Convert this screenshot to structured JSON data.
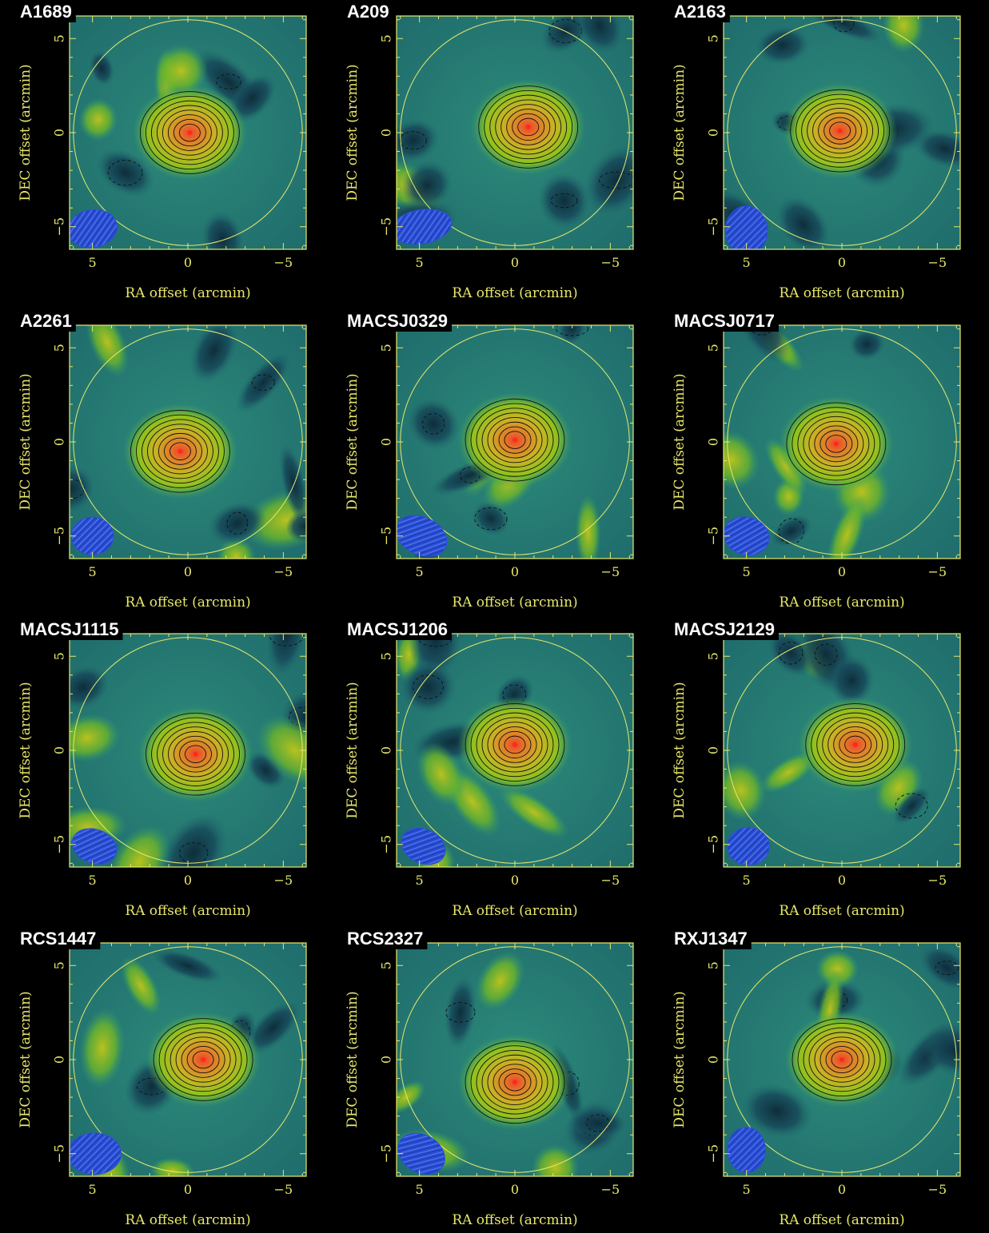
{
  "colors": {
    "background": "#000000",
    "axes": "#e8e86a",
    "title_box": "#000000",
    "title_text": "#ffffff",
    "beam": "#2a4fd6"
  },
  "chart_data": [
    {
      "type": "heatmap",
      "title": "A1689",
      "xlabel": "RA offset (arcmin)",
      "ylabel": "DEC offset (arcmin)",
      "xlim": [
        6.2,
        -6.2
      ],
      "ylim": [
        -6.2,
        6.2
      ],
      "xticks": [
        "5",
        "0",
        "−5"
      ],
      "yticks": [
        "−5",
        "0",
        "5"
      ],
      "field_radius": 6.0,
      "beam": {
        "x": 5.0,
        "y": -5.1,
        "rx": 1.3,
        "ry": 1.0,
        "angle": -10
      },
      "cluster_peak": {
        "x": -0.1,
        "y": 0.0
      }
    },
    {
      "type": "heatmap",
      "title": "A209",
      "xlabel": "RA offset (arcmin)",
      "ylabel": "DEC offset (arcmin)",
      "xlim": [
        6.2,
        -6.2
      ],
      "ylim": [
        -6.2,
        6.2
      ],
      "xticks": [
        "5",
        "0",
        "−5"
      ],
      "yticks": [
        "−5",
        "0",
        "5"
      ],
      "field_radius": 6.0,
      "beam": {
        "x": 4.9,
        "y": -5.0,
        "rx": 1.6,
        "ry": 0.9,
        "angle": -10
      },
      "cluster_peak": {
        "x": -0.7,
        "y": 0.3
      }
    },
    {
      "type": "heatmap",
      "title": "A2163",
      "xlabel": "RA offset (arcmin)",
      "ylabel": "DEC offset (arcmin)",
      "xlim": [
        6.2,
        -6.2
      ],
      "ylim": [
        -6.2,
        6.2
      ],
      "xticks": [
        "5",
        "0",
        "−5"
      ],
      "yticks": [
        "−5",
        "0",
        "5"
      ],
      "field_radius": 6.0,
      "beam": {
        "x": 5.0,
        "y": -5.2,
        "rx": 1.1,
        "ry": 1.3,
        "angle": 0
      },
      "cluster_peak": {
        "x": 0.1,
        "y": 0.1
      }
    },
    {
      "type": "heatmap",
      "title": "A2261",
      "xlabel": "RA offset (arcmin)",
      "ylabel": "DEC offset (arcmin)",
      "xlim": [
        6.2,
        -6.2
      ],
      "ylim": [
        -6.2,
        6.2
      ],
      "xticks": [
        "5",
        "0",
        "−5"
      ],
      "yticks": [
        "−5",
        "0",
        "5"
      ],
      "field_radius": 6.0,
      "beam": {
        "x": 5.0,
        "y": -5.0,
        "rx": 1.1,
        "ry": 1.0,
        "angle": 0
      },
      "cluster_peak": {
        "x": 0.4,
        "y": -0.5
      }
    },
    {
      "type": "heatmap",
      "title": "MACSJ0329",
      "xlabel": "RA offset (arcmin)",
      "ylabel": "DEC offset (arcmin)",
      "xlim": [
        6.2,
        -6.2
      ],
      "ylim": [
        -6.2,
        6.2
      ],
      "xticks": [
        "5",
        "0",
        "−5"
      ],
      "yticks": [
        "−5",
        "0",
        "5"
      ],
      "field_radius": 6.0,
      "beam": {
        "x": 4.9,
        "y": -5.0,
        "rx": 1.4,
        "ry": 1.0,
        "angle": 25
      },
      "cluster_peak": {
        "x": 0.0,
        "y": 0.1
      }
    },
    {
      "type": "heatmap",
      "title": "MACSJ0717",
      "xlabel": "RA offset (arcmin)",
      "ylabel": "DEC offset (arcmin)",
      "xlim": [
        6.2,
        -6.2
      ],
      "ylim": [
        -6.2,
        6.2
      ],
      "xticks": [
        "5",
        "0",
        "−5"
      ],
      "yticks": [
        "−5",
        "0",
        "5"
      ],
      "field_radius": 6.0,
      "beam": {
        "x": 5.0,
        "y": -5.0,
        "rx": 1.2,
        "ry": 1.0,
        "angle": 15
      },
      "cluster_peak": {
        "x": 0.3,
        "y": -0.1
      }
    },
    {
      "type": "heatmap",
      "title": "MACSJ1115",
      "xlabel": "RA offset (arcmin)",
      "ylabel": "DEC offset (arcmin)",
      "xlim": [
        6.2,
        -6.2
      ],
      "ylim": [
        -6.2,
        6.2
      ],
      "xticks": [
        "5",
        "0",
        "−5"
      ],
      "yticks": [
        "−5",
        "0",
        "5"
      ],
      "field_radius": 6.0,
      "beam": {
        "x": 4.9,
        "y": -5.1,
        "rx": 1.2,
        "ry": 0.9,
        "angle": 20
      },
      "cluster_peak": {
        "x": -0.4,
        "y": -0.2
      }
    },
    {
      "type": "heatmap",
      "title": "MACSJ1206",
      "xlabel": "RA offset (arcmin)",
      "ylabel": "DEC offset (arcmin)",
      "xlim": [
        6.2,
        -6.2
      ],
      "ylim": [
        -6.2,
        6.2
      ],
      "xticks": [
        "5",
        "0",
        "−5"
      ],
      "yticks": [
        "−5",
        "0",
        "5"
      ],
      "field_radius": 6.0,
      "beam": {
        "x": 4.8,
        "y": -5.1,
        "rx": 1.2,
        "ry": 0.9,
        "angle": 25
      },
      "cluster_peak": {
        "x": 0.0,
        "y": 0.3
      }
    },
    {
      "type": "heatmap",
      "title": "MACSJ2129",
      "xlabel": "RA offset (arcmin)",
      "ylabel": "DEC offset (arcmin)",
      "xlim": [
        6.2,
        -6.2
      ],
      "ylim": [
        -6.2,
        6.2
      ],
      "xticks": [
        "5",
        "0",
        "−5"
      ],
      "yticks": [
        "−5",
        "0",
        "5"
      ],
      "field_radius": 6.0,
      "beam": {
        "x": 4.9,
        "y": -5.1,
        "rx": 1.1,
        "ry": 1.0,
        "angle": 0
      },
      "cluster_peak": {
        "x": -0.7,
        "y": 0.3
      }
    },
    {
      "type": "heatmap",
      "title": "RCS1447",
      "xlabel": "RA offset (arcmin)",
      "ylabel": "DEC offset (arcmin)",
      "xlim": [
        6.2,
        -6.2
      ],
      "ylim": [
        -6.2,
        6.2
      ],
      "xticks": [
        "5",
        "0",
        "−5"
      ],
      "yticks": [
        "−5",
        "0",
        "5"
      ],
      "field_radius": 6.0,
      "beam": {
        "x": 4.9,
        "y": -5.0,
        "rx": 1.4,
        "ry": 1.1,
        "angle": 0
      },
      "cluster_peak": {
        "x": -0.8,
        "y": 0.0
      }
    },
    {
      "type": "heatmap",
      "title": "RCS2327",
      "xlabel": "RA offset (arcmin)",
      "ylabel": "DEC offset (arcmin)",
      "xlim": [
        6.2,
        -6.2
      ],
      "ylim": [
        -6.2,
        6.2
      ],
      "xticks": [
        "5",
        "0",
        "−5"
      ],
      "yticks": [
        "−5",
        "0",
        "5"
      ],
      "field_radius": 6.0,
      "beam": {
        "x": 4.9,
        "y": -5.0,
        "rx": 1.3,
        "ry": 1.0,
        "angle": 30
      },
      "cluster_peak": {
        "x": 0.0,
        "y": -1.2
      }
    },
    {
      "type": "heatmap",
      "title": "RXJ1347",
      "xlabel": "RA offset (arcmin)",
      "ylabel": "DEC offset (arcmin)",
      "xlim": [
        6.2,
        -6.2
      ],
      "ylim": [
        -6.2,
        6.2
      ],
      "xticks": [
        "5",
        "0",
        "−5"
      ],
      "yticks": [
        "−5",
        "0",
        "5"
      ],
      "field_radius": 6.0,
      "beam": {
        "x": 5.0,
        "y": -4.8,
        "rx": 1.0,
        "ry": 1.2,
        "angle": 0
      },
      "cluster_peak": {
        "x": 0.0,
        "y": 0.0
      }
    }
  ]
}
